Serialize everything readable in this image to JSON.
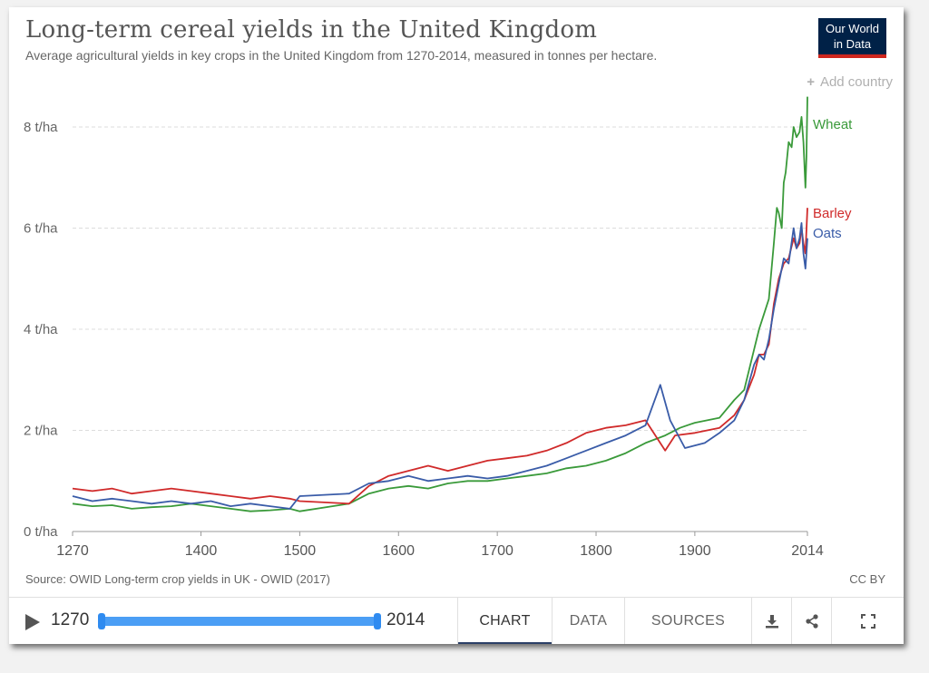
{
  "title": "Long-term cereal yields in the United Kingdom",
  "subtitle": "Average agricultural yields in key crops in the United Kingdom from 1270-2014, measured in tonnes per hectare.",
  "logo": {
    "line1": "Our World",
    "line2": "in Data"
  },
  "add_country": "Add country",
  "source": "Source: OWID Long-term crop yields in UK - OWID (2017)",
  "license": "CC BY",
  "colors": {
    "wheat": "#3a9a3a",
    "barley": "#d02a2a",
    "oats": "#3a5ca8",
    "grid": "#dddddd",
    "slider": "#4b9ef5",
    "tab_underline": "#2b3f67"
  },
  "controls": {
    "play_icon": "play-icon",
    "year_start": "1270",
    "year_end": "2014",
    "tabs": [
      "CHART",
      "DATA",
      "SOURCES"
    ],
    "active_tab": "CHART",
    "icons": [
      "download-icon",
      "share-icon",
      "fullscreen-icon"
    ]
  },
  "chart_data": {
    "type": "line",
    "title": "Long-term cereal yields in the United Kingdom",
    "xlabel": "",
    "ylabel": "",
    "xlim": [
      1270,
      2014
    ],
    "ylim": [
      0,
      8.5
    ],
    "x_ticks": [
      1270,
      1400,
      1500,
      1600,
      1700,
      1800,
      1900,
      2014
    ],
    "y_ticks": [
      0,
      2,
      4,
      6,
      8
    ],
    "y_tick_labels": [
      "0 t/ha",
      "2 t/ha",
      "4 t/ha",
      "6 t/ha",
      "8 t/ha"
    ],
    "grid": "horizontal dashed",
    "legend": "inline labels at line ends (right)",
    "series": [
      {
        "name": "Wheat",
        "color": "#3a9a3a",
        "points": [
          [
            1270,
            0.55
          ],
          [
            1290,
            0.5
          ],
          [
            1310,
            0.52
          ],
          [
            1330,
            0.45
          ],
          [
            1350,
            0.48
          ],
          [
            1370,
            0.5
          ],
          [
            1390,
            0.55
          ],
          [
            1410,
            0.5
          ],
          [
            1430,
            0.45
          ],
          [
            1450,
            0.4
          ],
          [
            1470,
            0.42
          ],
          [
            1490,
            0.45
          ],
          [
            1500,
            0.4
          ],
          [
            1550,
            0.55
          ],
          [
            1570,
            0.75
          ],
          [
            1590,
            0.85
          ],
          [
            1610,
            0.9
          ],
          [
            1630,
            0.85
          ],
          [
            1650,
            0.95
          ],
          [
            1670,
            1.0
          ],
          [
            1690,
            1.0
          ],
          [
            1710,
            1.05
          ],
          [
            1730,
            1.1
          ],
          [
            1750,
            1.15
          ],
          [
            1770,
            1.25
          ],
          [
            1790,
            1.3
          ],
          [
            1810,
            1.4
          ],
          [
            1830,
            1.55
          ],
          [
            1850,
            1.75
          ],
          [
            1870,
            1.9
          ],
          [
            1885,
            2.05
          ],
          [
            1900,
            2.15
          ],
          [
            1925,
            2.25
          ],
          [
            1940,
            2.6
          ],
          [
            1950,
            2.8
          ],
          [
            1960,
            3.6
          ],
          [
            1965,
            4.0
          ],
          [
            1970,
            4.3
          ],
          [
            1975,
            4.6
          ],
          [
            1980,
            5.7
          ],
          [
            1983,
            6.4
          ],
          [
            1985,
            6.3
          ],
          [
            1988,
            6.0
          ],
          [
            1990,
            6.9
          ],
          [
            1992,
            7.1
          ],
          [
            1995,
            7.7
          ],
          [
            1998,
            7.6
          ],
          [
            2000,
            8.0
          ],
          [
            2003,
            7.8
          ],
          [
            2006,
            7.9
          ],
          [
            2008,
            8.2
          ],
          [
            2010,
            7.7
          ],
          [
            2012,
            6.8
          ],
          [
            2013,
            7.4
          ],
          [
            2014,
            8.6
          ]
        ]
      },
      {
        "name": "Barley",
        "color": "#d02a2a",
        "points": [
          [
            1270,
            0.85
          ],
          [
            1290,
            0.8
          ],
          [
            1310,
            0.85
          ],
          [
            1330,
            0.75
          ],
          [
            1350,
            0.8
          ],
          [
            1370,
            0.85
          ],
          [
            1390,
            0.8
          ],
          [
            1410,
            0.75
          ],
          [
            1430,
            0.7
          ],
          [
            1450,
            0.65
          ],
          [
            1470,
            0.7
          ],
          [
            1490,
            0.65
          ],
          [
            1500,
            0.6
          ],
          [
            1550,
            0.55
          ],
          [
            1570,
            0.9
          ],
          [
            1590,
            1.1
          ],
          [
            1610,
            1.2
          ],
          [
            1630,
            1.3
          ],
          [
            1650,
            1.2
          ],
          [
            1670,
            1.3
          ],
          [
            1690,
            1.4
          ],
          [
            1710,
            1.45
          ],
          [
            1730,
            1.5
          ],
          [
            1750,
            1.6
          ],
          [
            1770,
            1.75
          ],
          [
            1790,
            1.95
          ],
          [
            1810,
            2.05
          ],
          [
            1830,
            2.1
          ],
          [
            1850,
            2.2
          ],
          [
            1870,
            1.6
          ],
          [
            1880,
            1.9
          ],
          [
            1900,
            1.95
          ],
          [
            1925,
            2.05
          ],
          [
            1940,
            2.3
          ],
          [
            1950,
            2.6
          ],
          [
            1960,
            3.1
          ],
          [
            1965,
            3.5
          ],
          [
            1970,
            3.5
          ],
          [
            1975,
            3.7
          ],
          [
            1980,
            4.5
          ],
          [
            1985,
            5.0
          ],
          [
            1990,
            5.3
          ],
          [
            1995,
            5.4
          ],
          [
            2000,
            5.8
          ],
          [
            2003,
            5.6
          ],
          [
            2006,
            5.7
          ],
          [
            2008,
            6.0
          ],
          [
            2010,
            5.7
          ],
          [
            2012,
            5.5
          ],
          [
            2014,
            6.4
          ]
        ]
      },
      {
        "name": "Oats",
        "color": "#3a5ca8",
        "points": [
          [
            1270,
            0.7
          ],
          [
            1290,
            0.6
          ],
          [
            1310,
            0.65
          ],
          [
            1330,
            0.6
          ],
          [
            1350,
            0.55
          ],
          [
            1370,
            0.6
          ],
          [
            1390,
            0.55
          ],
          [
            1410,
            0.6
          ],
          [
            1430,
            0.5
          ],
          [
            1450,
            0.55
          ],
          [
            1470,
            0.5
          ],
          [
            1490,
            0.45
          ],
          [
            1500,
            0.7
          ],
          [
            1550,
            0.75
          ],
          [
            1570,
            0.95
          ],
          [
            1590,
            1.0
          ],
          [
            1610,
            1.1
          ],
          [
            1630,
            1.0
          ],
          [
            1650,
            1.05
          ],
          [
            1670,
            1.1
          ],
          [
            1690,
            1.05
          ],
          [
            1710,
            1.1
          ],
          [
            1730,
            1.2
          ],
          [
            1750,
            1.3
          ],
          [
            1770,
            1.45
          ],
          [
            1790,
            1.6
          ],
          [
            1810,
            1.75
          ],
          [
            1830,
            1.9
          ],
          [
            1850,
            2.1
          ],
          [
            1865,
            2.9
          ],
          [
            1875,
            2.2
          ],
          [
            1890,
            1.65
          ],
          [
            1910,
            1.75
          ],
          [
            1925,
            1.95
          ],
          [
            1940,
            2.2
          ],
          [
            1950,
            2.6
          ],
          [
            1960,
            3.3
          ],
          [
            1965,
            3.5
          ],
          [
            1970,
            3.4
          ],
          [
            1975,
            3.8
          ],
          [
            1980,
            4.4
          ],
          [
            1985,
            4.9
          ],
          [
            1990,
            5.4
          ],
          [
            1995,
            5.3
          ],
          [
            2000,
            6.0
          ],
          [
            2003,
            5.6
          ],
          [
            2006,
            5.8
          ],
          [
            2008,
            6.1
          ],
          [
            2010,
            5.5
          ],
          [
            2012,
            5.2
          ],
          [
            2014,
            5.8
          ]
        ]
      }
    ]
  }
}
